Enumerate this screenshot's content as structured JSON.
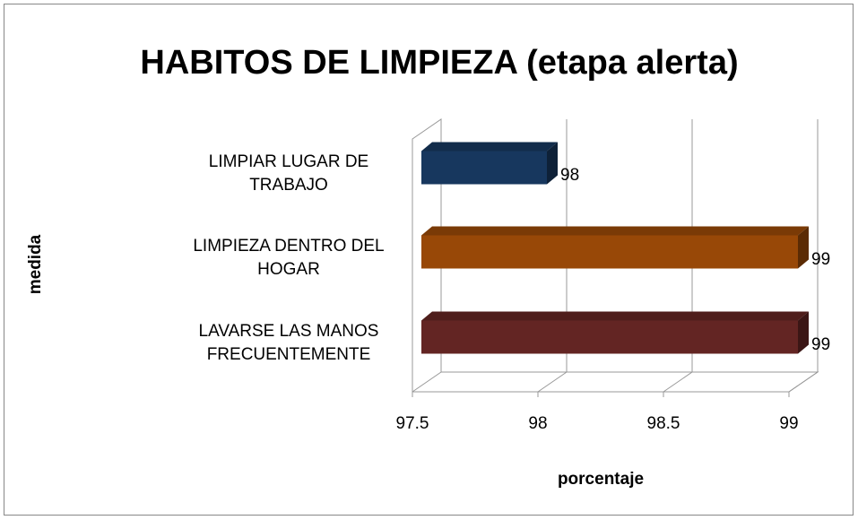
{
  "chart_data": {
    "type": "bar3d_horizontal",
    "title": "HABITOS DE LIMPIEZA (etapa alerta)",
    "categories": [
      "LIMPIAR LUGAR DE TRABAJO",
      "LIMPIEZA DENTRO DEL HOGAR",
      "LAVARSE LAS MANOS FRECUENTEMENTE"
    ],
    "values": [
      98,
      99,
      99
    ],
    "colors": [
      "#17375e",
      "#984807",
      "#632523"
    ],
    "xlabel": "porcentaje",
    "ylabel": "medida",
    "xlim": [
      97.5,
      99
    ],
    "xticks": [
      97.5,
      98,
      98.5,
      99
    ],
    "grid": true
  }
}
